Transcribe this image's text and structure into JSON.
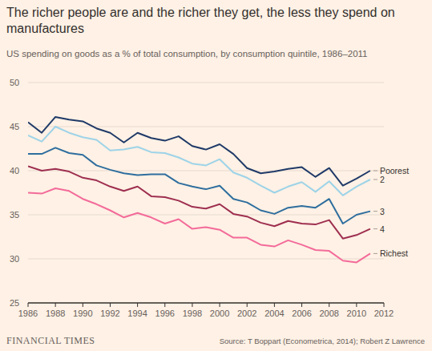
{
  "chart_data": {
    "type": "line",
    "title": "The richer people are and the richer they get, the less they spend on manufactures",
    "subtitle": "US spending on goods as a % of total consumption, by consumption quintile, 1986–2011",
    "source": "Source: T Boppart (Econometrica, 2014); Robert Z Lawrence",
    "branding": "FINANCIAL TIMES",
    "x": [
      1986,
      1987,
      1988,
      1989,
      1990,
      1991,
      1992,
      1993,
      1994,
      1995,
      1996,
      1997,
      1998,
      1999,
      2000,
      2001,
      2002,
      2003,
      2004,
      2005,
      2006,
      2007,
      2008,
      2009,
      2010,
      2011
    ],
    "series": [
      {
        "name": "Poorest",
        "color": "#1f3a68",
        "values": [
          45.5,
          44.3,
          46.1,
          45.8,
          45.6,
          44.8,
          44.3,
          43.2,
          44.3,
          43.7,
          43.4,
          43.9,
          42.8,
          42.4,
          43.0,
          41.9,
          40.3,
          39.7,
          39.9,
          40.2,
          40.4,
          39.3,
          40.3,
          38.3,
          39.1,
          40.0
        ]
      },
      {
        "name": "2",
        "color": "#9dd3e8",
        "values": [
          44.0,
          43.3,
          45.0,
          44.3,
          43.8,
          43.5,
          42.3,
          42.4,
          42.7,
          42.1,
          42.0,
          41.5,
          40.8,
          40.6,
          41.3,
          39.8,
          39.2,
          38.3,
          37.5,
          38.2,
          38.7,
          37.6,
          38.8,
          37.2,
          38.2,
          39.0
        ]
      },
      {
        "name": "3",
        "color": "#2e6e9e",
        "values": [
          41.9,
          41.9,
          42.6,
          42.0,
          41.8,
          40.6,
          40.1,
          39.7,
          39.5,
          39.6,
          39.6,
          38.6,
          38.2,
          37.9,
          38.3,
          36.8,
          36.4,
          35.5,
          35.1,
          35.8,
          36.0,
          35.8,
          36.8,
          34.0,
          35.0,
          35.4
        ]
      },
      {
        "name": "4",
        "color": "#9e2f50",
        "values": [
          40.5,
          40.0,
          40.2,
          39.9,
          39.2,
          38.9,
          38.2,
          37.7,
          38.2,
          37.1,
          37.0,
          36.6,
          35.9,
          35.7,
          36.2,
          35.1,
          34.8,
          34.1,
          33.7,
          34.3,
          34.0,
          33.9,
          34.4,
          32.3,
          32.7,
          33.4
        ]
      },
      {
        "name": "Richest",
        "color": "#f36b9a",
        "values": [
          37.5,
          37.4,
          38.0,
          37.7,
          36.8,
          36.2,
          35.5,
          34.7,
          35.2,
          34.7,
          34.0,
          34.5,
          33.4,
          33.6,
          33.3,
          32.4,
          32.4,
          31.6,
          31.4,
          32.1,
          31.6,
          31.0,
          30.9,
          29.8,
          29.6,
          30.6
        ]
      }
    ],
    "xlim": [
      1986,
      2012
    ],
    "xticks": [
      1986,
      1988,
      1990,
      1992,
      1994,
      1996,
      1998,
      2000,
      2002,
      2004,
      2006,
      2008,
      2010,
      2012
    ],
    "ylim": [
      25,
      50
    ],
    "yticks": [
      25,
      30,
      35,
      40,
      45,
      50
    ],
    "grid": true
  }
}
